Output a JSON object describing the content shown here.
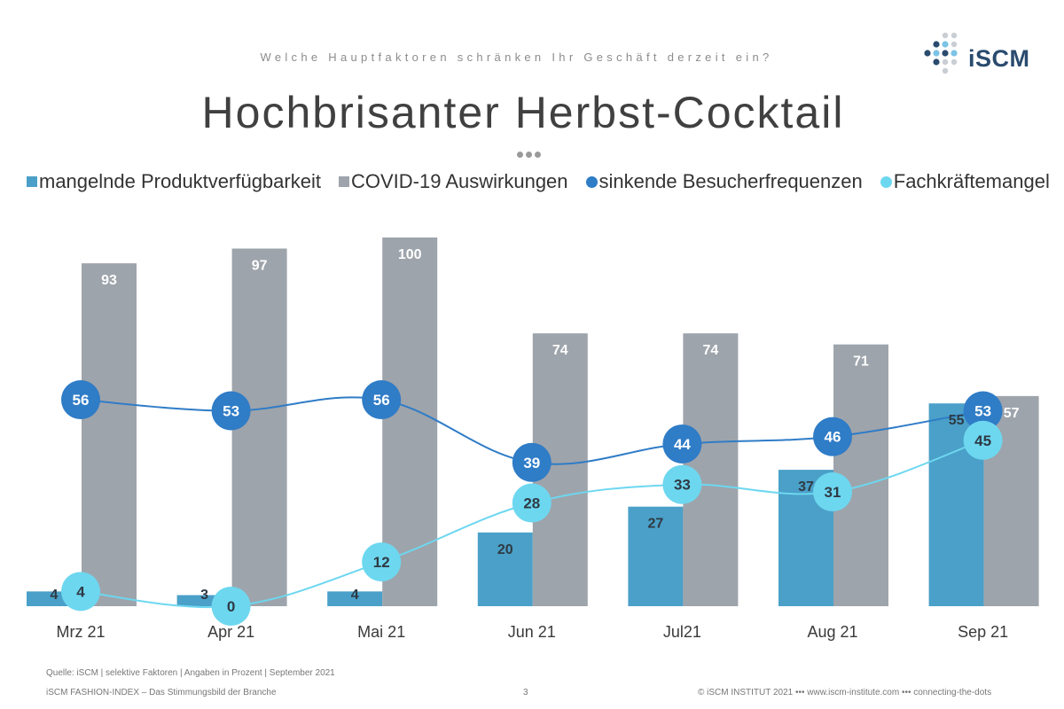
{
  "header": {
    "question": "Welche Hauptfaktoren schränken Ihr Geschäft derzeit ein?",
    "title": "Hochbrisanter Herbst-Cocktail",
    "logo_text": "iSCM"
  },
  "colors": {
    "bar_product": "#4aa0c8",
    "bar_covid": "#9ea4ab",
    "line_visitors": "#2f7cc7",
    "line_skilled": "#6dd7f0",
    "logo_dark": "#2a4b6e",
    "logo_light": "#7cc3e6"
  },
  "chart_data": {
    "type": "bar",
    "categories": [
      "Mrz 21",
      "Apr 21",
      "Mai 21",
      "Jun 21",
      "Jul21",
      "Aug 21",
      "Sep 21"
    ],
    "ylim": [
      0,
      100
    ],
    "grid": false,
    "legend_position": "top",
    "series": [
      {
        "name": "mangelnde Produktverfügbarkeit",
        "kind": "bar",
        "values": [
          4,
          3,
          4,
          20,
          27,
          37,
          55
        ]
      },
      {
        "name": "COVID-19 Auswirkungen",
        "kind": "bar",
        "values": [
          93,
          97,
          100,
          74,
          74,
          71,
          57
        ]
      },
      {
        "name": "sinkende Besucherfrequenzen",
        "kind": "line",
        "values": [
          56,
          53,
          56,
          39,
          44,
          46,
          53
        ]
      },
      {
        "name": "Fachkräftemangel",
        "kind": "line",
        "values": [
          4,
          0,
          12,
          28,
          33,
          31,
          45
        ]
      }
    ]
  },
  "footer": {
    "source": "Quelle: iSCM | selektive Faktoren | Angaben in Prozent | September 2021",
    "left": "iSCM FASHION-INDEX – Das Stimmungsbild der Branche",
    "page": "3",
    "right": "© iSCM INSTITUT 2021  ••• www.iscm-institute.com  ••• connecting-the-dots"
  }
}
